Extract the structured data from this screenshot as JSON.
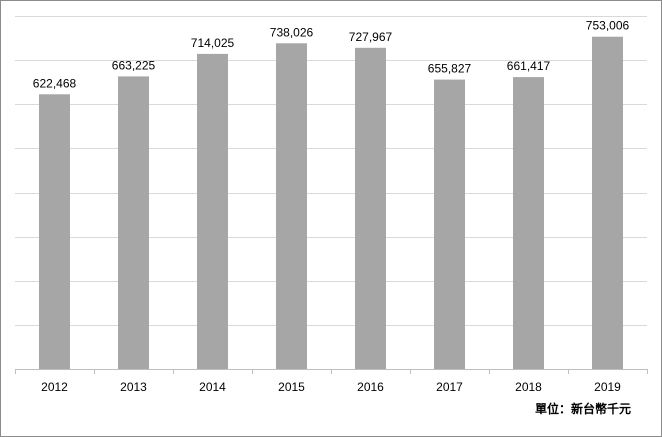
{
  "chart_data": {
    "type": "bar",
    "categories": [
      "2012",
      "2013",
      "2014",
      "2015",
      "2016",
      "2017",
      "2018",
      "2019"
    ],
    "values": [
      622468,
      663225,
      714025,
      738026,
      727967,
      655827,
      661417,
      753006
    ],
    "data_labels": [
      "622,468",
      "663,225",
      "714,025",
      "738,026",
      "727,967",
      "655,827",
      "661,417",
      "753,006"
    ],
    "ylim": [
      0,
      800000
    ],
    "y_gridline_step": 100000,
    "grid": true,
    "title": "",
    "xlabel": "",
    "ylabel": "",
    "unit_note": "單位：新台幣千元",
    "colors": {
      "bar": "#a6a6a6",
      "grid": "#d9d9d9",
      "axis": "#bfbfbf",
      "frame": "#8c8c8c"
    }
  }
}
